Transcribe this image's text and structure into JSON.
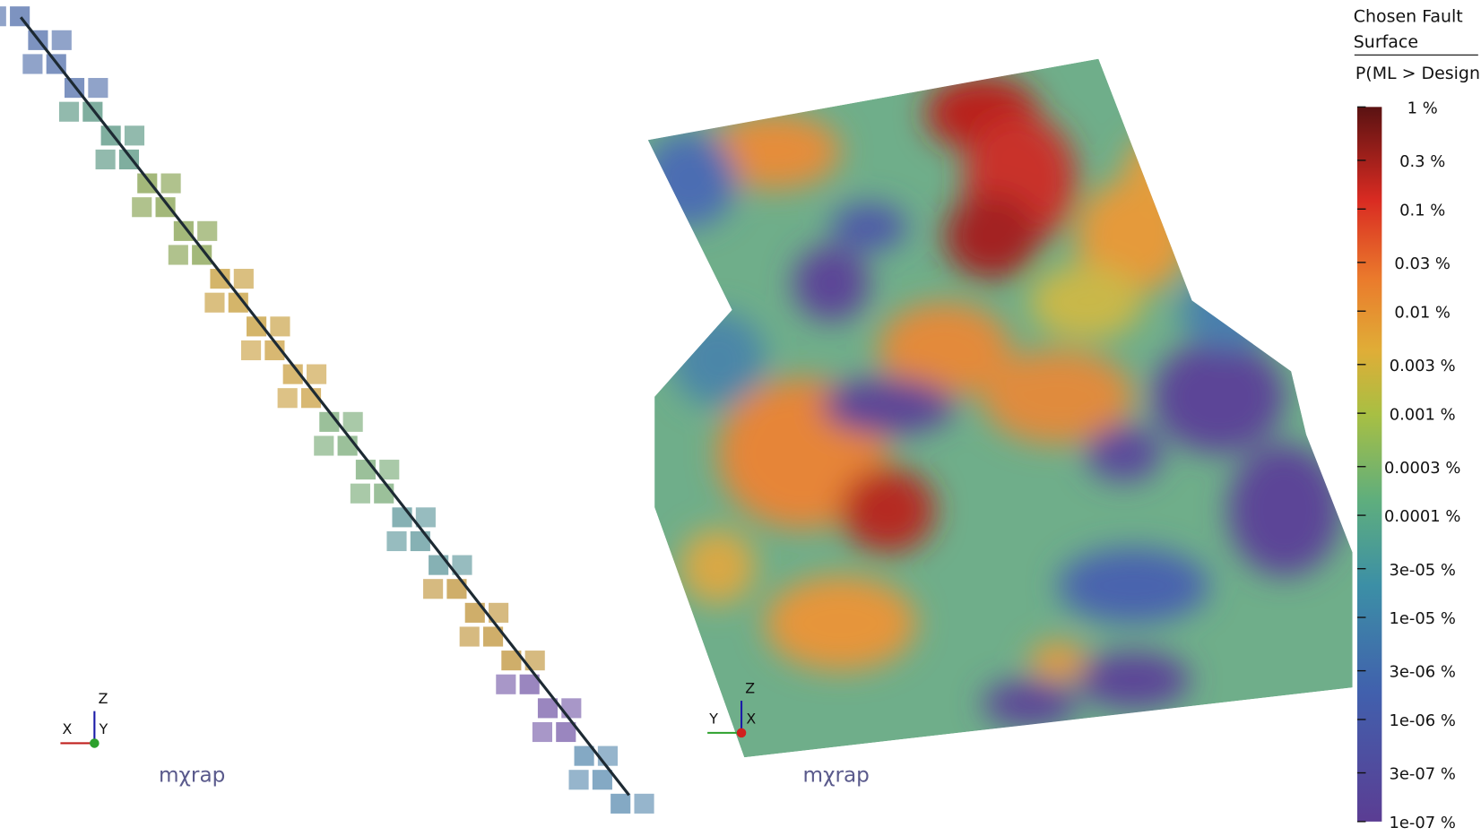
{
  "views": [
    {
      "axes": {
        "x": "X",
        "y": "Y",
        "z": "Z"
      },
      "logo": "mχrap"
    },
    {
      "axes": {
        "x": "X",
        "y": "Y",
        "z": "Z"
      },
      "logo": "mχrap"
    }
  ],
  "legend": {
    "title": "Chosen Fault Surface",
    "subtitle": "P(ML > Design)",
    "lim": [
      1e-07,
      1
    ],
    "ticks": [
      {
        "value": 1,
        "label": "1 %"
      },
      {
        "value": 0.3,
        "label": "0.3 %"
      },
      {
        "value": 0.1,
        "label": "0.1 %"
      },
      {
        "value": 0.03,
        "label": "0.03 %"
      },
      {
        "value": 0.01,
        "label": "0.01 %"
      },
      {
        "value": 0.003,
        "label": "0.003 %"
      },
      {
        "value": 0.001,
        "label": "0.001 %"
      },
      {
        "value": 0.0003,
        "label": "0.0003 %"
      },
      {
        "value": 0.0001,
        "label": "0.0001 %"
      },
      {
        "value": 3e-05,
        "label": "3e-05 %"
      },
      {
        "value": 1e-05,
        "label": "1e-05 %"
      },
      {
        "value": 3e-06,
        "label": "3e-06 %"
      },
      {
        "value": 1e-06,
        "label": "1e-06 %"
      },
      {
        "value": 3e-07,
        "label": "3e-07 %"
      },
      {
        "value": 1e-07,
        "label": "1e-07 %"
      }
    ]
  }
}
